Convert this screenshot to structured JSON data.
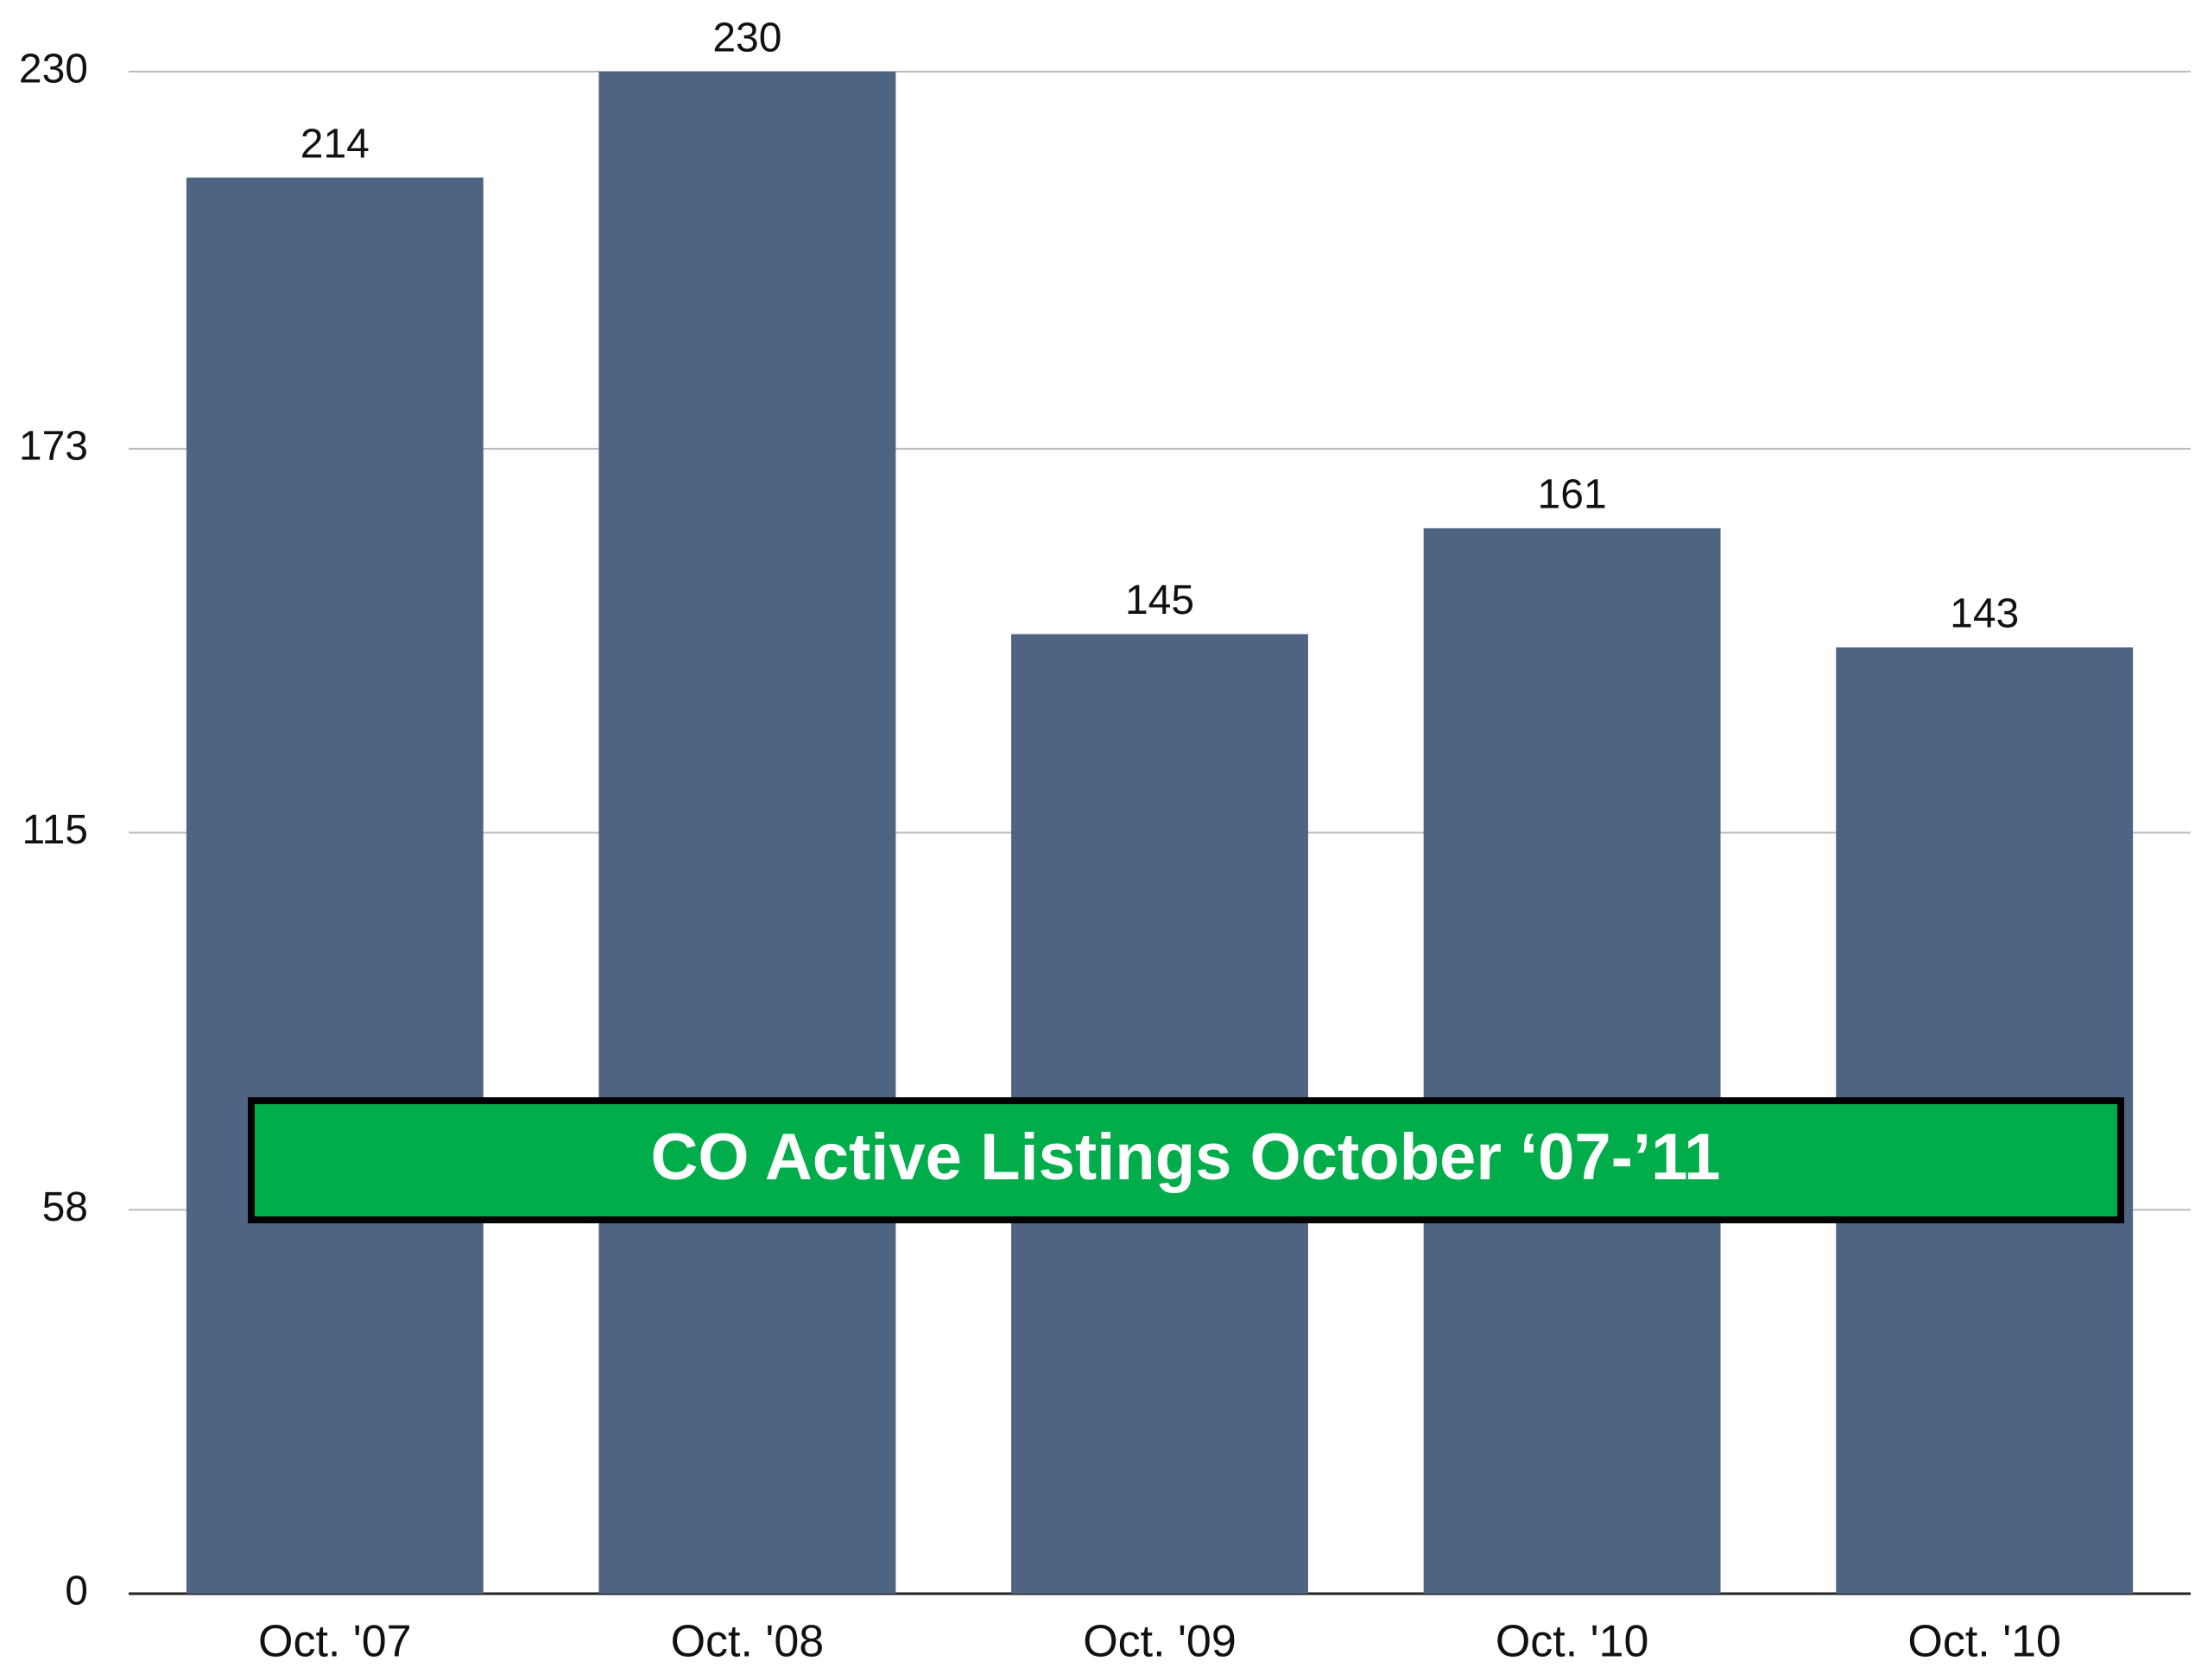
{
  "chart_data": {
    "type": "bar",
    "title": "CO Active Listings October ‘07-’11",
    "categories": [
      "Oct. '07",
      "Oct. '08",
      "Oct. '09",
      "Oct. '10",
      "Oct. '10"
    ],
    "values": [
      214,
      230,
      145,
      161,
      143
    ],
    "color": "#4f6382",
    "ylim": [
      0,
      230
    ],
    "yticks": [
      0,
      58,
      115,
      173,
      230
    ],
    "grid": true,
    "title_box_color": "#00ad4a"
  }
}
